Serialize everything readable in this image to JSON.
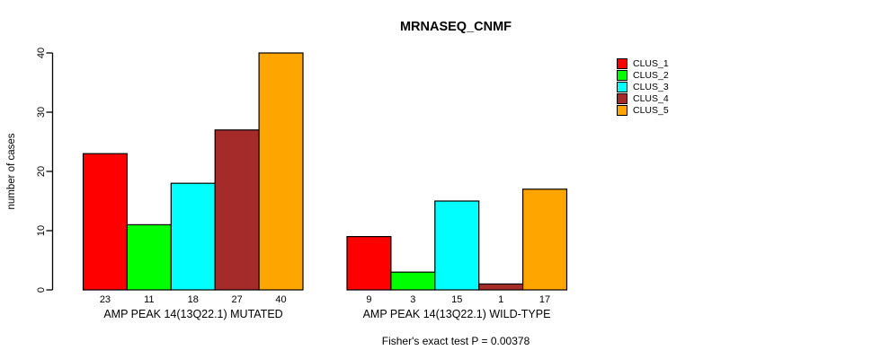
{
  "chart_data": {
    "type": "bar",
    "title": "MRNASEQ_CNMF",
    "xlabel": "",
    "ylabel": "number of cases",
    "ylim": [
      0,
      40
    ],
    "yticks": [
      0,
      10,
      20,
      30,
      40
    ],
    "grid": false,
    "legend_position": "right",
    "bar_value_labels": true,
    "categories": [
      "AMP PEAK 14(13Q22.1) MUTATED",
      "AMP PEAK 14(13Q22.1) WILD-TYPE"
    ],
    "series": [
      {
        "name": "CLUS_1",
        "color": "#FF0000",
        "values": [
          23,
          9
        ]
      },
      {
        "name": "CLUS_2",
        "color": "#00FF00",
        "values": [
          11,
          3
        ]
      },
      {
        "name": "CLUS_3",
        "color": "#00FFFF",
        "values": [
          18,
          15
        ]
      },
      {
        "name": "CLUS_4",
        "color": "#A52A2A",
        "values": [
          27,
          1
        ]
      },
      {
        "name": "CLUS_5",
        "color": "#FFA500",
        "values": [
          40,
          17
        ]
      }
    ],
    "annotation": "Fisher's exact test P = 0.00378",
    "axis_color": "#000000",
    "bar_border_color": "#000000"
  }
}
